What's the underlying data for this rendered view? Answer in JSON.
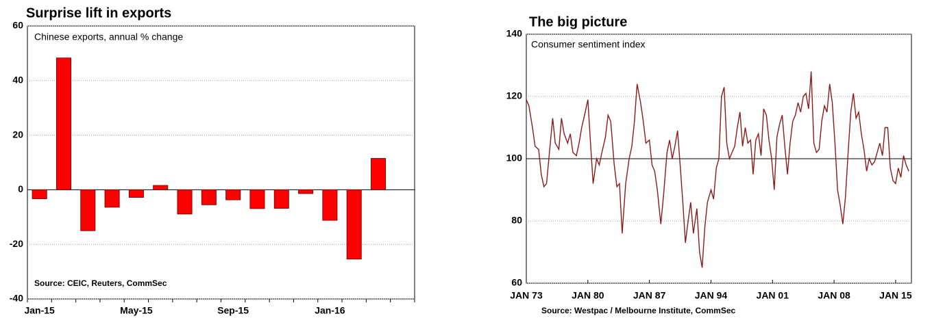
{
  "chart_data": [
    {
      "type": "bar",
      "title": "Surprise lift in exports",
      "subtitle": "Chinese exports, annual % change",
      "source": "Source: CEIC, Reuters, CommSec",
      "categories": [
        "Jan-15",
        null,
        null,
        null,
        "May-15",
        null,
        null,
        null,
        "Sep-15",
        null,
        null,
        null,
        "Jan-16",
        null,
        null
      ],
      "values": [
        -3.3,
        48.3,
        -15,
        -6.4,
        -2.8,
        1.6,
        -8.9,
        -5.5,
        -3.7,
        -6.9,
        -6.8,
        -1.4,
        -11.2,
        -25.4,
        11.5
      ],
      "color": "#ff0000",
      "ylim": [
        -40,
        60
      ],
      "yticks": [
        -40,
        -20,
        0,
        20,
        40,
        60
      ],
      "grid": true
    },
    {
      "type": "line",
      "title": "The big picture",
      "subtitle": "Consumer sentiment index",
      "source": "Source: Westpac / Melbourne Institute, CommSec",
      "x": [
        1973.0,
        1973.3,
        1973.7,
        1974.0,
        1974.4,
        1974.7,
        1975.0,
        1975.3,
        1975.7,
        1976.0,
        1976.3,
        1976.7,
        1977.0,
        1977.3,
        1977.7,
        1978.0,
        1978.3,
        1978.7,
        1979.0,
        1979.3,
        1979.7,
        1980.0,
        1980.3,
        1980.6,
        1981.0,
        1981.3,
        1981.6,
        1982.0,
        1982.3,
        1982.6,
        1983.0,
        1983.3,
        1983.6,
        1983.9,
        1984.3,
        1984.7,
        1985.0,
        1985.3,
        1985.6,
        1986.0,
        1986.3,
        1986.6,
        1987.0,
        1987.3,
        1987.6,
        1987.9,
        1988.3,
        1988.6,
        1989.0,
        1989.3,
        1989.6,
        1989.9,
        1990.2,
        1990.5,
        1990.8,
        1991.1,
        1991.4,
        1991.7,
        1992.0,
        1992.4,
        1992.7,
        1993.0,
        1993.3,
        1993.6,
        1994.0,
        1994.3,
        1994.6,
        1994.9,
        1995.2,
        1995.5,
        1995.8,
        1996.1,
        1996.4,
        1996.7,
        1997.0,
        1997.3,
        1997.6,
        1997.9,
        1998.2,
        1998.5,
        1998.8,
        1999.1,
        1999.4,
        1999.7,
        2000.0,
        2000.3,
        2000.6,
        2000.9,
        2001.2,
        2001.5,
        2001.8,
        2002.1,
        2002.4,
        2002.7,
        2003.0,
        2003.3,
        2003.6,
        2003.9,
        2004.2,
        2004.5,
        2004.8,
        2005.1,
        2005.4,
        2005.7,
        2006.0,
        2006.3,
        2006.6,
        2006.9,
        2007.2,
        2007.5,
        2007.8,
        2008.1,
        2008.4,
        2008.7,
        2009.0,
        2009.3,
        2009.6,
        2009.9,
        2010.2,
        2010.5,
        2010.8,
        2011.1,
        2011.4,
        2011.7,
        2012.0,
        2012.3,
        2012.6,
        2012.9,
        2013.2,
        2013.5,
        2013.8,
        2014.1,
        2014.4,
        2014.7,
        2015.0,
        2015.3,
        2015.6,
        2015.9,
        2016.2,
        2016.5
      ],
      "series": [
        {
          "name": "Consumer sentiment index",
          "color": "#8b1a1a",
          "values": [
            119,
            117,
            110,
            104,
            103,
            95,
            91,
            92,
            104,
            113,
            105,
            103,
            113,
            108,
            105,
            108,
            102,
            101,
            105,
            110,
            115,
            119,
            105,
            92,
            100,
            98,
            102,
            107,
            114,
            112,
            98,
            91,
            92,
            76,
            92,
            100,
            104,
            112,
            124,
            118,
            112,
            105,
            106,
            98,
            96,
            90,
            79,
            88,
            102,
            106,
            100,
            104,
            109,
            98,
            86,
            73,
            80,
            86,
            76,
            84,
            70,
            65,
            78,
            86,
            90,
            87,
            97,
            100,
            120,
            123,
            105,
            100,
            102,
            104,
            110,
            115,
            104,
            110,
            105,
            106,
            95,
            106,
            108,
            101,
            116,
            114,
            106,
            100,
            90,
            107,
            111,
            114,
            104,
            95,
            105,
            112,
            114,
            118,
            115,
            120,
            121,
            116,
            128,
            105,
            102,
            103,
            112,
            117,
            115,
            124,
            118,
            105,
            90,
            85,
            79,
            88,
            102,
            115,
            121,
            113,
            115,
            108,
            103,
            96,
            100,
            98,
            99,
            102,
            105,
            101,
            110,
            110,
            97,
            93,
            92,
            97,
            94,
            101,
            98,
            96
          ]
        }
      ],
      "xlim": [
        1973,
        2016.8
      ],
      "xticks": [
        {
          "value": 1973,
          "label": "JAN 73"
        },
        {
          "value": 1980,
          "label": "JAN 80"
        },
        {
          "value": 1987,
          "label": "JAN 87"
        },
        {
          "value": 1994,
          "label": "JAN 94"
        },
        {
          "value": 2001,
          "label": "JAN 01"
        },
        {
          "value": 2008,
          "label": "JAN 08"
        },
        {
          "value": 2015,
          "label": "JAN 15"
        }
      ],
      "ylim": [
        60,
        140
      ],
      "yticks": [
        60,
        80,
        100,
        120,
        140
      ],
      "grid": true,
      "hline": 100
    }
  ]
}
